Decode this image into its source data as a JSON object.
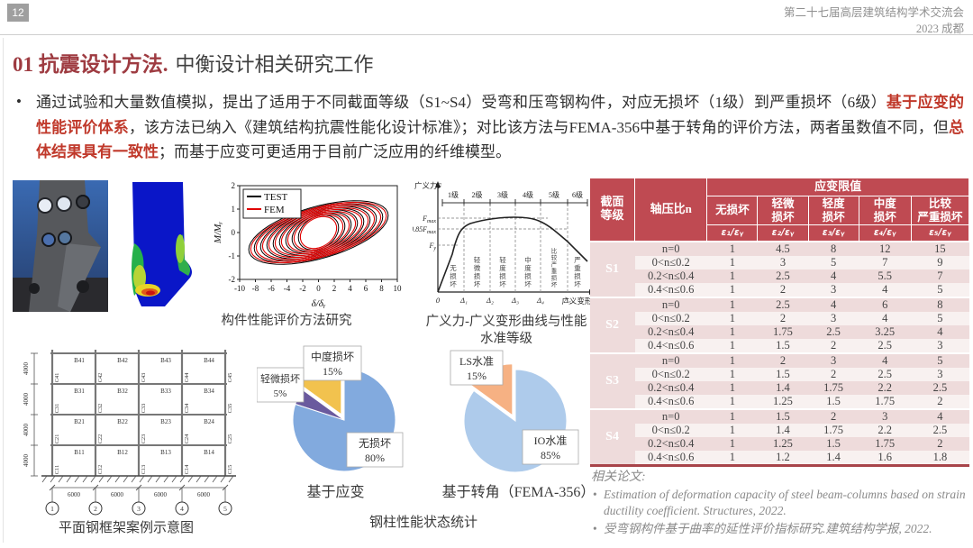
{
  "page": {
    "number": "12",
    "conf1": "第二十七届高层建筑结构学术交流会",
    "conf2": "2023 成都"
  },
  "title": {
    "section": "01 抗震设计方法.",
    "subtitle": "中衡设计相关研究工作"
  },
  "paragraph": {
    "bullet": "•",
    "parts": [
      {
        "text": "通过试验和大量数值模拟，提出了适用于不同截面等级（S1~S4）受弯和压弯钢构件，对应无损坏（1级）到严重损坏（6级）",
        "em": false
      },
      {
        "text": "基于应变的性能评价体系",
        "em": true
      },
      {
        "text": "，该方法已纳入《建筑结构抗震性能化设计标准》；对比该方法与FEMA-356中基于转角的评价方法，两者虽数值不同，但",
        "em": false
      },
      {
        "text": "总体结果具有一致性",
        "em": true
      },
      {
        "text": "；而基于应变可更适用于目前广泛应用的纤维模型。",
        "em": false
      }
    ]
  },
  "figures": {
    "component_caption": "构件性能评价方法研究",
    "hysteresis": {
      "legend": [
        "TEST",
        "FEM"
      ],
      "colors": {
        "TEST": "#000000",
        "FEM": "#e00000"
      },
      "xlabel": "δ/δᵧ",
      "ylabel": "M/Mᵧ",
      "xticks": [
        -10,
        -8,
        -6,
        -4,
        -2,
        0,
        2,
        4,
        6,
        8,
        10
      ],
      "yticks": [
        -2,
        -1,
        0,
        1,
        2
      ],
      "xlim": [
        -10,
        10
      ],
      "ylim": [
        -2,
        2
      ]
    },
    "curve": {
      "caption1": "广义力-广义变形曲线与性能",
      "caption2": "水准等级",
      "ylabel": "广义力F",
      "xlabel": "广义变形Δ",
      "levels": [
        "1级",
        "2级",
        "3级",
        "4级",
        "5级",
        "6级"
      ],
      "hlines": [
        "Fmax",
        "0.85Fmax",
        "Fy"
      ],
      "xticks": [
        "0",
        "Δ₁",
        "Δ₂",
        "Δ₃",
        "Δ₄",
        "Δ₅"
      ],
      "regions": [
        "无损坏",
        "轻微损坏",
        "轻度损坏",
        "中度损坏",
        "比较严重损坏",
        "严重损坏"
      ]
    },
    "frame": {
      "caption": "平面钢框架案例示意图",
      "story_dim": "4000",
      "bay_dim": "6000",
      "beams": [
        [
          "B41",
          "B42",
          "B43",
          "B44"
        ],
        [
          "B31",
          "B32",
          "B33",
          "B34"
        ],
        [
          "B21",
          "B22",
          "B23",
          "B24"
        ],
        [
          "B11",
          "B12",
          "B13",
          "B14"
        ]
      ],
      "columns": [
        [
          "C41",
          "C42",
          "C43",
          "C44",
          "C45"
        ],
        [
          "C31",
          "C32",
          "C33",
          "C34",
          "C35"
        ],
        [
          "C21",
          "C22",
          "C23",
          "C24",
          "C25"
        ],
        [
          "C11",
          "C12",
          "C13",
          "C14",
          "C15"
        ]
      ],
      "axes": [
        "1",
        "2",
        "3",
        "4",
        "5"
      ]
    },
    "pies_caption": "钢柱性能状态统计"
  },
  "chart_data": [
    {
      "type": "pie",
      "title": "基于应变",
      "categories": [
        "无损坏",
        "轻微损坏",
        "中度损坏"
      ],
      "values": [
        80,
        5,
        15
      ],
      "colors": [
        "#82aade",
        "#6a5a9e",
        "#f2c24e"
      ],
      "labels": [
        [
          "无损坏",
          "80%"
        ],
        [
          "轻微损坏",
          "5%"
        ],
        [
          "中度损坏",
          "15%"
        ]
      ],
      "explode_index": 2
    },
    {
      "type": "pie",
      "title": "基于转角（FEMA-356）",
      "categories": [
        "IO水准",
        "LS水准"
      ],
      "values": [
        85,
        15
      ],
      "colors": [
        "#aecbeb",
        "#f6b183"
      ],
      "labels": [
        [
          "IO水准",
          "85%"
        ],
        [
          "LS水准",
          "15%"
        ]
      ],
      "explode_index": 1
    }
  ],
  "table": {
    "corner_header": "截面等级",
    "axial_header": "轴压比n",
    "span_header": "应变限值",
    "damage_headers": [
      [
        "无损坏"
      ],
      [
        "轻微",
        "损坏"
      ],
      [
        "轻度",
        "损坏"
      ],
      [
        "中度",
        "损坏"
      ],
      [
        "比较",
        "严重损坏"
      ]
    ],
    "ratio_headers": [
      "ε₁/εᵧ",
      "ε₂/εᵧ",
      "ε₃/εᵧ",
      "ε₄/εᵧ",
      "ε₅/εᵧ"
    ],
    "groups": [
      {
        "label": "S1",
        "rows": [
          [
            "n=0",
            "1",
            "4.5",
            "8",
            "12",
            "15"
          ],
          [
            "0<n≤0.2",
            "1",
            "3",
            "5",
            "7",
            "9"
          ],
          [
            "0.2<n≤0.4",
            "1",
            "2.5",
            "4",
            "5.5",
            "7"
          ],
          [
            "0.4<n≤0.6",
            "1",
            "2",
            "3",
            "4",
            "5"
          ]
        ]
      },
      {
        "label": "S2",
        "rows": [
          [
            "n=0",
            "1",
            "2.5",
            "4",
            "6",
            "8"
          ],
          [
            "0<n≤0.2",
            "1",
            "2",
            "3",
            "4",
            "5"
          ],
          [
            "0.2<n≤0.4",
            "1",
            "1.75",
            "2.5",
            "3.25",
            "4"
          ],
          [
            "0.4<n≤0.6",
            "1",
            "1.5",
            "2",
            "2.5",
            "3"
          ]
        ]
      },
      {
        "label": "S3",
        "rows": [
          [
            "n=0",
            "1",
            "2",
            "3",
            "4",
            "5"
          ],
          [
            "0<n≤0.2",
            "1",
            "1.5",
            "2",
            "2.5",
            "3"
          ],
          [
            "0.2<n≤0.4",
            "1",
            "1.4",
            "1.75",
            "2.2",
            "2.5"
          ],
          [
            "0.4<n≤0.6",
            "1",
            "1.25",
            "1.5",
            "1.75",
            "2"
          ]
        ]
      },
      {
        "label": "S4",
        "rows": [
          [
            "n=0",
            "1",
            "1.5",
            "2",
            "3",
            "4"
          ],
          [
            "0<n≤0.2",
            "1",
            "1.4",
            "1.75",
            "2.2",
            "2.5"
          ],
          [
            "0.2<n≤0.4",
            "1",
            "1.25",
            "1.5",
            "1.75",
            "2"
          ],
          [
            "0.4<n≤0.6",
            "1",
            "1.2",
            "1.4",
            "1.6",
            "1.8"
          ]
        ]
      }
    ]
  },
  "papers": {
    "heading": "相关论文:",
    "items": [
      "Estimation of deformation capacity of steel beam-columns based on strain ductility coefficient. Structures, 2022.",
      "受弯钢构件基于曲率的延性评价指标研究.建筑结构学报, 2022."
    ]
  },
  "colors": {
    "accent_red": "#bf4a52",
    "title_red": "#9e3b41",
    "em_red": "#c0392b"
  }
}
